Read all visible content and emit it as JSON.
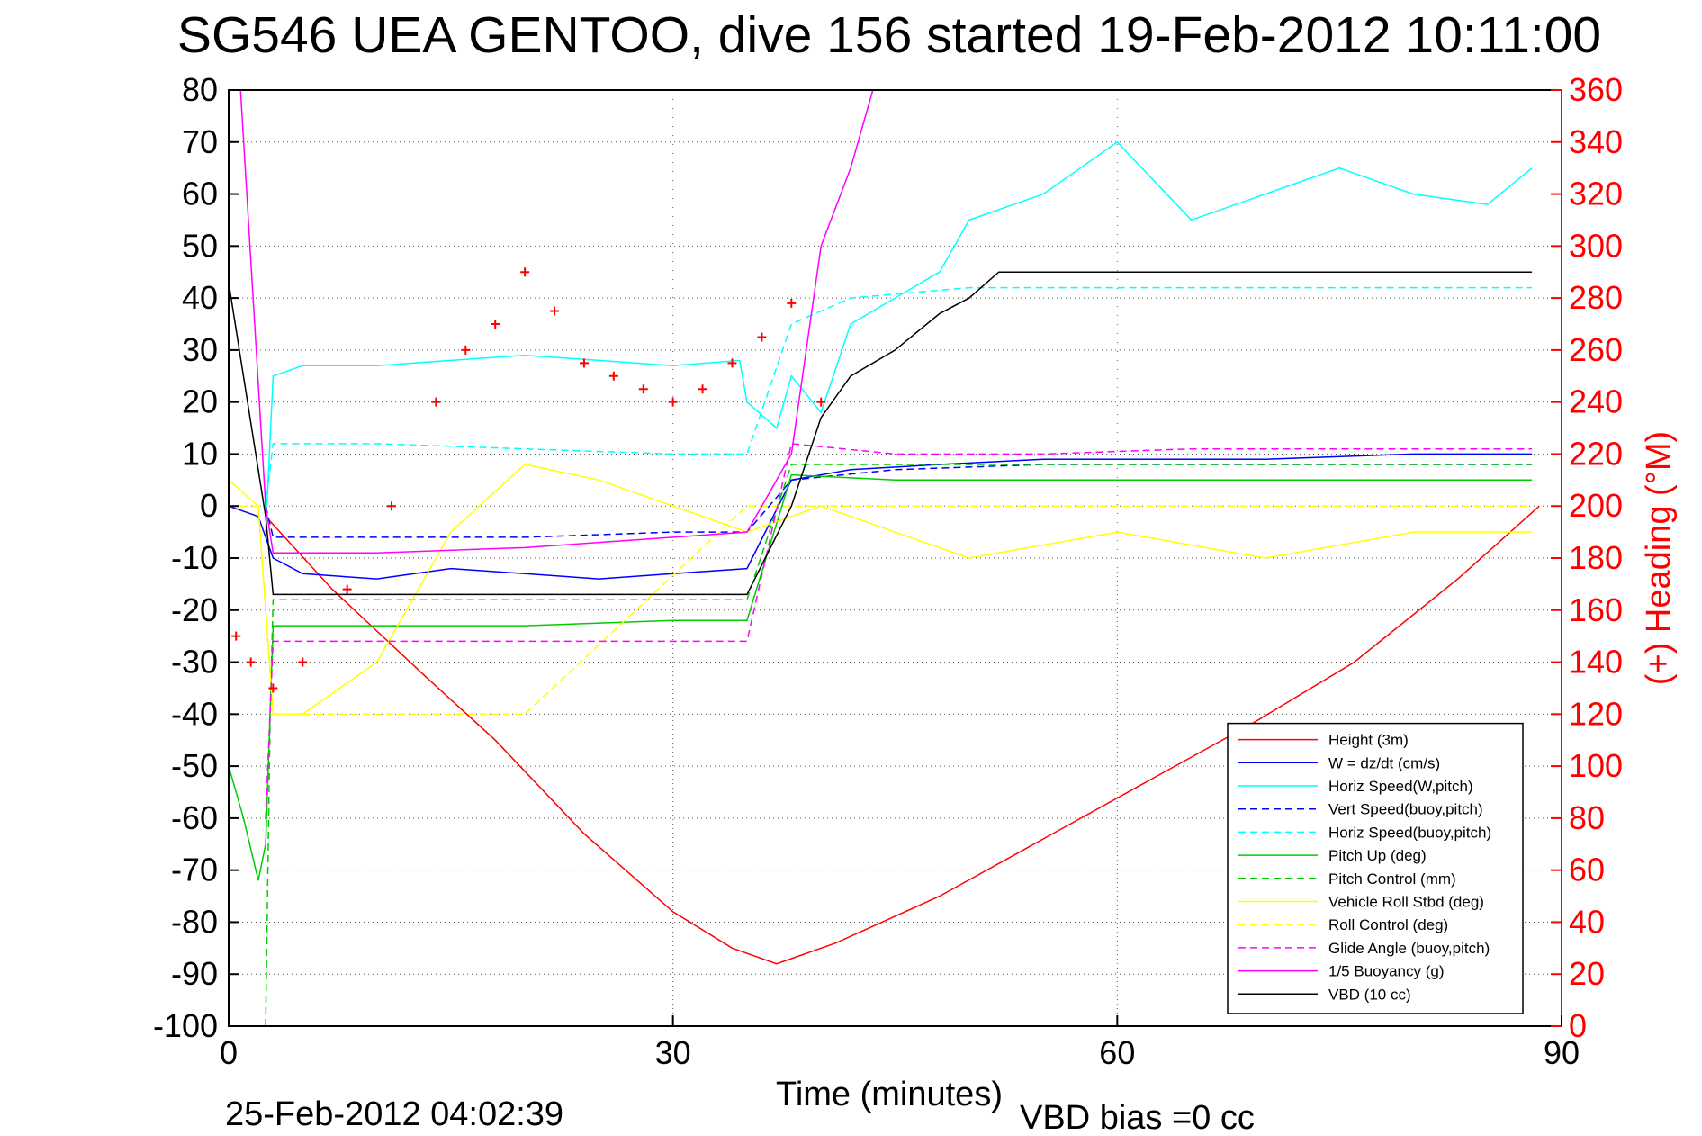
{
  "chart_data": {
    "type": "line",
    "title": "SG546 UEA GENTOO, dive 156 started 19-Feb-2012 10:11:00",
    "xlabel": "Time (minutes)",
    "ylabel": "",
    "y2label": "(+) Heading (°M)",
    "xlim": [
      0,
      90
    ],
    "ylim": [
      -100,
      80
    ],
    "y2lim": [
      0,
      360
    ],
    "xticks": [
      "0",
      "30",
      "60",
      "90"
    ],
    "yticks": [
      "80",
      "70",
      "60",
      "50",
      "40",
      "30",
      "20",
      "10",
      "0",
      "-10",
      "-20",
      "-30",
      "-40",
      "-50",
      "-60",
      "-70",
      "-80",
      "-90",
      "-100"
    ],
    "y2ticks": [
      "360",
      "340",
      "320",
      "300",
      "280",
      "260",
      "240",
      "220",
      "200",
      "180",
      "160",
      "140",
      "120",
      "100",
      "80",
      "60",
      "40",
      "20",
      "0"
    ],
    "grid": true,
    "legend_position": "lower-right",
    "footer_left": "25-Feb-2012 04:02:39",
    "footer_right": "VBD bias =0 cc",
    "series": [
      {
        "name": "Height (3m)",
        "color": "#ff0000",
        "style": "solid",
        "x": [
          2.5,
          7,
          13,
          18,
          24,
          30,
          34,
          37,
          41,
          48,
          55,
          62,
          69,
          76,
          83,
          88.5
        ],
        "y": [
          -2,
          -16,
          -32,
          -45,
          -63,
          -78,
          -85,
          -88,
          -84,
          -75,
          -64,
          -53,
          -42,
          -30,
          -14,
          0
        ]
      },
      {
        "name": "W = dz/dt (cm/s)",
        "color": "#0000ff",
        "style": "solid",
        "x": [
          0,
          2,
          3,
          5,
          10,
          15,
          20,
          25,
          30,
          35,
          38,
          42,
          48,
          55,
          62,
          70,
          80,
          88
        ],
        "y": [
          0,
          -2,
          -10,
          -13,
          -14,
          -12,
          -13,
          -14,
          -13,
          -12,
          5,
          7,
          8,
          9,
          9,
          9,
          10,
          10
        ]
      },
      {
        "name": "Horiz Speed(W,pitch)",
        "color": "#00ffff",
        "style": "solid",
        "x": [
          2.5,
          3,
          5,
          10,
          15,
          20,
          25,
          30,
          34.5,
          35,
          37,
          38,
          40,
          42,
          45,
          48,
          50,
          55,
          60,
          65,
          70,
          75,
          80,
          85,
          88
        ],
        "y": [
          -5,
          25,
          27,
          27,
          28,
          29,
          28,
          27,
          28,
          20,
          15,
          25,
          18,
          35,
          40,
          45,
          55,
          60,
          70,
          55,
          60,
          65,
          60,
          58,
          65
        ]
      },
      {
        "name": "Vert Speed(buoy,pitch)",
        "color": "#0000ff",
        "style": "dashed",
        "x": [
          2.5,
          3,
          10,
          20,
          30,
          35,
          38,
          45,
          55,
          65,
          75,
          88
        ],
        "y": [
          0,
          -6,
          -6,
          -6,
          -5,
          -5,
          5,
          7,
          8,
          8,
          8,
          8
        ]
      },
      {
        "name": "Horiz Speed(buoy,pitch)",
        "color": "#00ffff",
        "style": "dashed",
        "x": [
          2.5,
          3,
          10,
          20,
          30,
          35,
          38,
          42,
          50,
          60,
          70,
          88
        ],
        "y": [
          0,
          12,
          12,
          11,
          10,
          10,
          35,
          40,
          42,
          42,
          42,
          42
        ]
      },
      {
        "name": "Pitch Up (deg)",
        "color": "#00cc00",
        "style": "solid",
        "x": [
          0,
          1,
          2,
          2.5,
          3,
          10,
          20,
          30,
          35,
          38,
          45,
          55,
          65,
          75,
          88
        ],
        "y": [
          -50,
          -60,
          -72,
          -65,
          -23,
          -23,
          -23,
          -22,
          -22,
          6,
          5,
          5,
          5,
          5,
          5
        ]
      },
      {
        "name": "Pitch Control (mm)",
        "color": "#00cc00",
        "style": "dashed",
        "x": [
          2.5,
          2.8,
          3,
          5,
          20,
          35,
          38,
          88
        ],
        "y": [
          -100,
          -40,
          -18,
          -18,
          -18,
          -18,
          8,
          8
        ]
      },
      {
        "name": "Vehicle Roll Stbd (deg)",
        "color": "#ffff00",
        "style": "solid",
        "x": [
          0,
          2,
          3,
          5,
          10,
          15,
          20,
          25,
          30,
          35,
          40,
          50,
          60,
          70,
          80,
          88
        ],
        "y": [
          5,
          0,
          -40,
          -40,
          -30,
          -5,
          8,
          5,
          0,
          -5,
          0,
          -10,
          -5,
          -10,
          -5,
          -5
        ]
      },
      {
        "name": "Roll Control (deg)",
        "color": "#ffff00",
        "style": "dashed",
        "x": [
          0,
          2,
          3,
          20,
          35,
          40,
          88
        ],
        "y": [
          0,
          0,
          -40,
          -40,
          0,
          0,
          0
        ]
      },
      {
        "name": "Glide Angle (buoy,pitch)",
        "color": "#ff00ff",
        "style": "dashed",
        "x": [
          2.5,
          3,
          10,
          20,
          30,
          35,
          38,
          45,
          55,
          65,
          75,
          88
        ],
        "y": [
          -60,
          -26,
          -26,
          -26,
          -26,
          -26,
          12,
          10,
          10,
          11,
          11,
          11
        ]
      },
      {
        "name": "1/5 Buoyancy (g)",
        "color": "#ff00ff",
        "style": "solid",
        "x": [
          0.8,
          2.5,
          3,
          10,
          20,
          30,
          35,
          38,
          40,
          42,
          43.5
        ],
        "y": [
          80,
          0,
          -9,
          -9,
          -8,
          -6,
          -5,
          10,
          50,
          65,
          80
        ]
      },
      {
        "name": "VBD (10 cc)",
        "color": "#000000",
        "style": "solid",
        "x": [
          0,
          2.5,
          3,
          10,
          20,
          30,
          35,
          38,
          40,
          42,
          45,
          48,
          50,
          52,
          55,
          60,
          70,
          80,
          88
        ],
        "y": [
          43,
          -2,
          -17,
          -17,
          -17,
          -17,
          -17,
          0,
          17,
          25,
          30,
          37,
          40,
          45,
          45,
          45,
          45,
          45,
          45
        ]
      }
    ],
    "heading": {
      "name": "(+) Heading",
      "color": "#ff0000",
      "marker": "+",
      "x": [
        0.5,
        1.5,
        3,
        5,
        8,
        11,
        14,
        16,
        18,
        20,
        22,
        24,
        26,
        28,
        30,
        32,
        34,
        36,
        38,
        40
      ],
      "y": [
        150,
        140,
        130,
        140,
        168,
        200,
        240,
        260,
        270,
        290,
        275,
        255,
        250,
        245,
        240,
        245,
        255,
        265,
        278,
        240
      ]
    }
  }
}
